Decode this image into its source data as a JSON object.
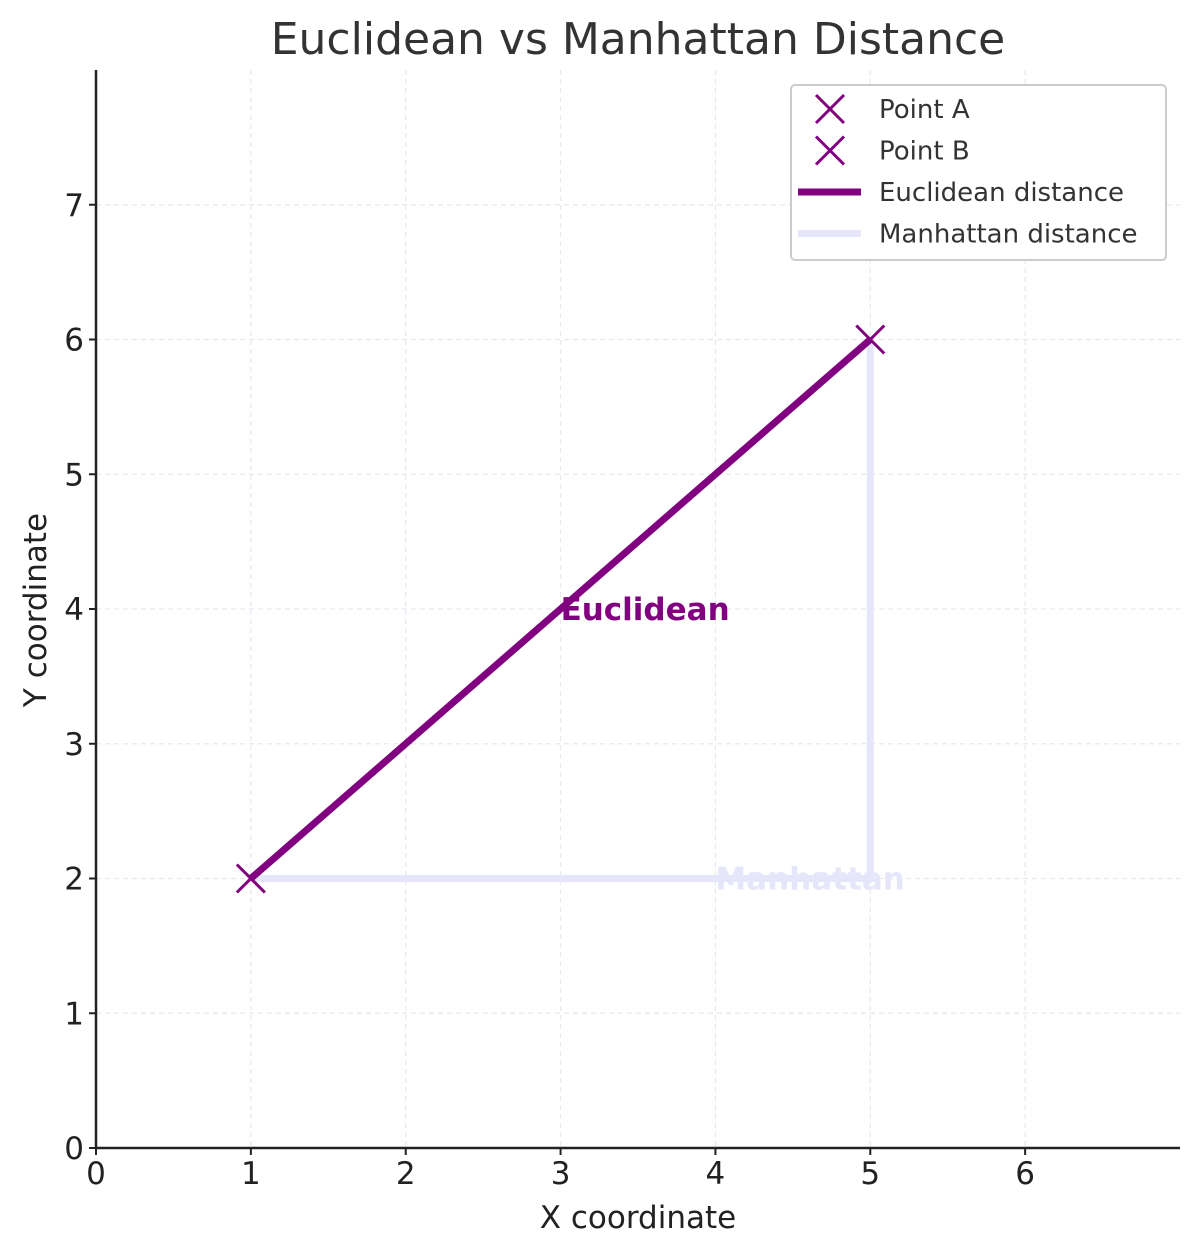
{
  "chart_data": {
    "type": "line",
    "title": "Euclidean vs Manhattan Distance",
    "xlabel": "X coordinate",
    "ylabel": "Y coordinate",
    "xlim": [
      0,
      7
    ],
    "ylim": [
      0,
      8
    ],
    "x_ticks": [
      0,
      1,
      2,
      3,
      4,
      5,
      6
    ],
    "y_ticks": [
      0,
      1,
      2,
      3,
      4,
      5,
      6,
      7
    ],
    "grid": true,
    "legend_position": "top-right",
    "points": [
      {
        "name": "Point A",
        "x": 1,
        "y": 2,
        "marker": "x",
        "color": "#800080"
      },
      {
        "name": "Point B",
        "x": 5,
        "y": 6,
        "marker": "x",
        "color": "#800080"
      }
    ],
    "series": [
      {
        "name": "Euclidean distance",
        "color": "#800080",
        "x": [
          1,
          5
        ],
        "y": [
          2,
          6
        ]
      },
      {
        "name": "Manhattan distance",
        "color": "#e6e6fa",
        "x": [
          1,
          5,
          5
        ],
        "y": [
          2,
          2,
          6
        ]
      }
    ],
    "annotations": [
      {
        "text": "Euclidean",
        "x": 3,
        "y": 4,
        "color": "#800080"
      },
      {
        "text": "Manhattan",
        "x": 4,
        "y": 2,
        "color": "#e6e6fa"
      }
    ],
    "colors": {
      "grid": "#e8e8f0",
      "axis": "#222222"
    }
  }
}
